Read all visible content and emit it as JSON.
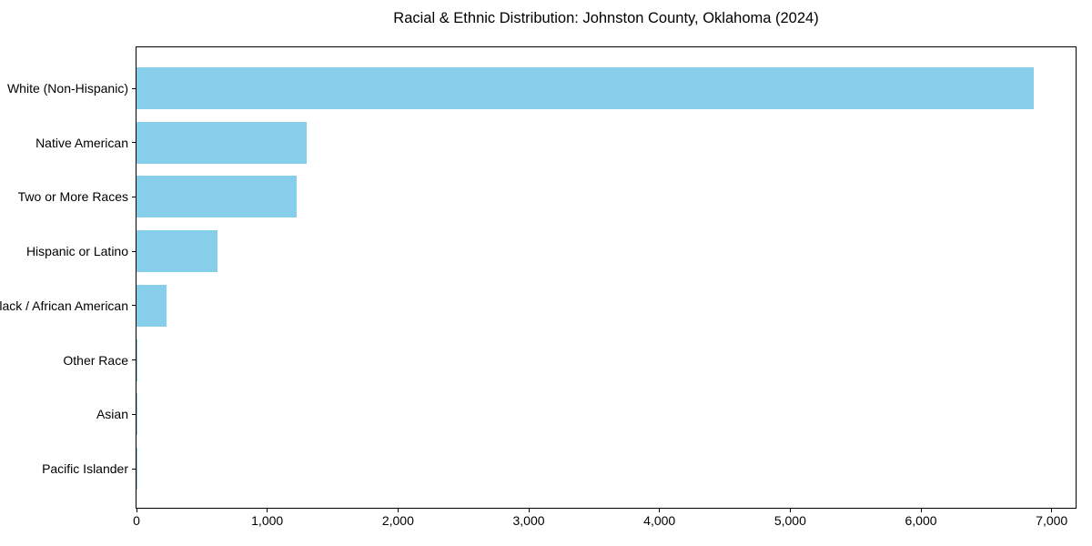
{
  "chart_data": {
    "type": "bar",
    "orientation": "horizontal",
    "title": "Racial & Ethnic Distribution: Johnston County, Oklahoma (2024)",
    "categories": [
      "White (Non-Hispanic)",
      "Native American",
      "Two or More Races",
      "Hispanic or Latino",
      "Black / African American",
      "Other Race",
      "Asian",
      "Pacific Islander"
    ],
    "values": [
      6860,
      1300,
      1225,
      620,
      230,
      8,
      4,
      2
    ],
    "xlabel": "",
    "ylabel": "",
    "xlim": [
      0,
      7183
    ],
    "x_ticks": [
      0,
      1000,
      2000,
      3000,
      4000,
      5000,
      6000,
      7000
    ],
    "x_tick_labels": [
      "0",
      "1,000",
      "2,000",
      "3,000",
      "4,000",
      "5,000",
      "6,000",
      "7,000"
    ],
    "bar_color": "#87CEEB",
    "grid": false,
    "legend": null,
    "categories_order": "top-to-bottom"
  }
}
